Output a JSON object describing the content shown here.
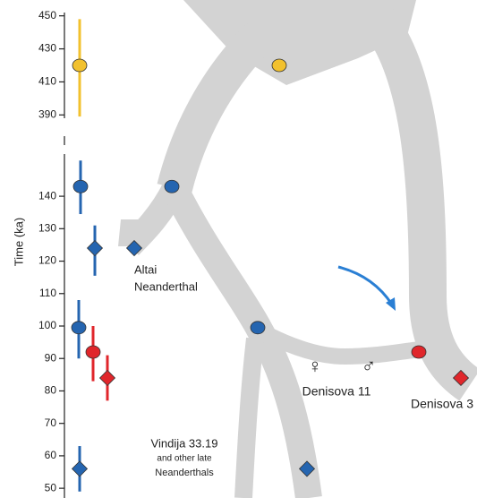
{
  "chart_data": {
    "type": "errorbar",
    "ylabel": "Time (ka)",
    "yaxes": [
      {
        "ylim": [
          388,
          452
        ],
        "yticks": [
          390,
          410,
          430,
          450
        ]
      },
      {
        "ylim": [
          47,
          153
        ],
        "yticks": [
          50,
          60,
          70,
          80,
          90,
          100,
          110,
          120,
          130,
          140
        ]
      }
    ],
    "points": [
      {
        "value": 420,
        "low": 389,
        "high": 448,
        "marker": "circle",
        "color": "#f2c12e"
      },
      {
        "value": 143,
        "low": 134.5,
        "high": 151,
        "marker": "circle",
        "color": "#2565b0"
      },
      {
        "value": 124,
        "low": 115.5,
        "high": 131,
        "marker": "diamond",
        "color": "#2565b0"
      },
      {
        "value": 99.5,
        "low": 90,
        "high": 108,
        "marker": "circle",
        "color": "#2565b0"
      },
      {
        "value": 92,
        "low": 83,
        "high": 100,
        "marker": "circle",
        "color": "#e0262b"
      },
      {
        "value": 84,
        "low": 77,
        "high": 91,
        "marker": "diamond",
        "color": "#e0262b"
      },
      {
        "value": 56,
        "low": 49,
        "high": 63,
        "marker": "diamond",
        "color": "#2565b0"
      }
    ],
    "annotations": [
      {
        "lines": [
          "Altai",
          "Neanderthal"
        ],
        "color": "#2a6db5"
      },
      {
        "lines": [
          "Vindija 33.19",
          "and other late",
          "Neanderthals"
        ],
        "color": "#2a6db5"
      },
      {
        "lines": [
          "♀"
        ],
        "color": "#2565b0"
      },
      {
        "lines": [
          "♂"
        ],
        "color": "#e0262b"
      },
      {
        "lines": [
          "Denisova 11"
        ],
        "color": "#7a2a8a"
      },
      {
        "lines": [
          "Denisova 3"
        ],
        "color": "#d0202a"
      }
    ]
  }
}
